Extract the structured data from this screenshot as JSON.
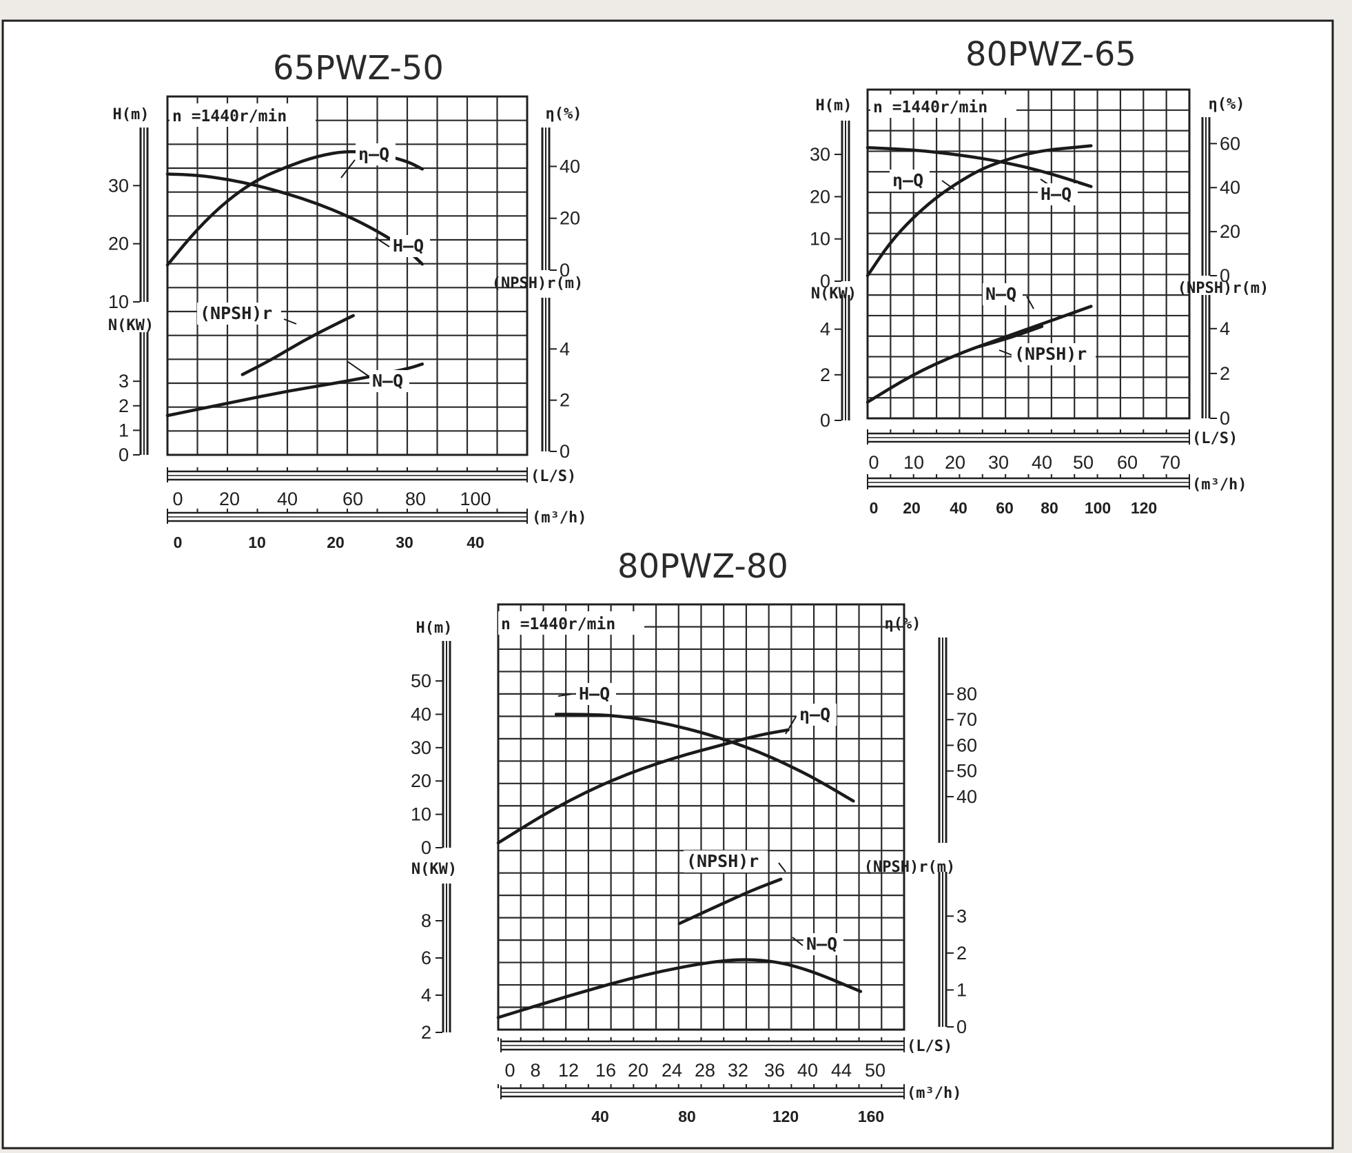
{
  "chart_data": [
    {
      "type": "line",
      "title": "65PWZ-50",
      "note": "n =1440r/min",
      "xlabel_top": "(L/S)",
      "xlabel_bottom": "(m³/h)",
      "x_ticks_top": [
        "0",
        "20",
        "40",
        "60",
        "80",
        "100"
      ],
      "x_ticks_bottom": [
        "0",
        "10",
        "20",
        "30",
        "40"
      ],
      "ylabel_left_top": "H(m)",
      "ylabel_left_bottom": "N(KW)",
      "ylabel_right_top": "η(%)",
      "ylabel_right_bottom": "(NPSH)r(m)",
      "y_ticks_h": [
        "10",
        "20",
        "30"
      ],
      "y_ticks_n": [
        "0",
        "1",
        "2",
        "3"
      ],
      "y_ticks_eta": [
        "0",
        "20",
        "40"
      ],
      "y_ticks_npsh": [
        "0",
        "2",
        "4"
      ],
      "xlim": [
        0,
        120
      ],
      "ylim_h": [
        10,
        40
      ],
      "ylim_n": [
        0,
        5
      ],
      "ylim_eta": [
        0,
        55
      ],
      "ylim_npsh": [
        0,
        6
      ],
      "series": [
        {
          "name": "η—Q",
          "axis": "eta",
          "x": [
            0,
            10,
            20,
            30,
            40,
            50,
            60,
            70,
            80,
            85
          ],
          "y": [
            2,
            16,
            27,
            35,
            40,
            44,
            46,
            45,
            42,
            39
          ]
        },
        {
          "name": "H—Q",
          "axis": "h",
          "x": [
            0,
            10,
            20,
            30,
            40,
            50,
            60,
            70,
            80,
            85
          ],
          "y": [
            32,
            31.8,
            31.1,
            30,
            28.6,
            26.9,
            24.8,
            22.2,
            19,
            16.5
          ]
        },
        {
          "name": "(NPSH)r",
          "axis": "npsh",
          "x": [
            25,
            35,
            45,
            55,
            62
          ],
          "y": [
            3.0,
            3.6,
            4.3,
            4.9,
            5.3
          ]
        },
        {
          "name": "N—Q",
          "axis": "n",
          "x": [
            0,
            20,
            40,
            60,
            80,
            85
          ],
          "y": [
            1.6,
            2.1,
            2.6,
            3.0,
            3.5,
            3.7
          ]
        }
      ]
    },
    {
      "type": "line",
      "title": "80PWZ-65",
      "note": "n =1440r/min",
      "xlabel_top": "(L/S)",
      "xlabel_bottom": "(m³/h)",
      "x_ticks_top": [
        "0",
        "10",
        "20",
        "30",
        "40",
        "50",
        "60",
        "70"
      ],
      "x_ticks_bottom": [
        "0",
        "20",
        "40",
        "60",
        "80",
        "100",
        "120"
      ],
      "ylabel_left_top": "H(m)",
      "ylabel_left_bottom": "N(KW)",
      "ylabel_right_top": "η(%)",
      "ylabel_right_bottom": "(NPSH)r(m)",
      "y_ticks_h": [
        "0",
        "10",
        "20",
        "30"
      ],
      "y_ticks_n": [
        "0",
        "2",
        "4"
      ],
      "y_ticks_eta": [
        "0",
        "20",
        "40",
        "60"
      ],
      "y_ticks_npsh": [
        "0",
        "2",
        "4"
      ],
      "xlim": [
        0,
        72
      ],
      "ylim_h": [
        0,
        38
      ],
      "ylim_n": [
        0,
        5.5
      ],
      "ylim_eta": [
        0,
        72
      ],
      "ylim_npsh": [
        0,
        5.5
      ],
      "series": [
        {
          "name": "η—Q",
          "axis": "eta",
          "x": [
            0,
            5,
            10,
            15,
            20,
            25,
            30,
            35,
            40,
            45,
            50
          ],
          "y": [
            0,
            15,
            26,
            35,
            42,
            48,
            52,
            55,
            57,
            58,
            59
          ]
        },
        {
          "name": "H—Q",
          "axis": "h",
          "x": [
            0,
            10,
            20,
            30,
            40,
            50
          ],
          "y": [
            31.6,
            31.1,
            30,
            28.3,
            25.8,
            22.4
          ]
        },
        {
          "name": "N—Q",
          "axis": "n",
          "x": [
            0,
            10,
            20,
            30,
            40,
            50
          ],
          "y": [
            0.8,
            2.0,
            2.9,
            3.6,
            4.3,
            5.0
          ]
        },
        {
          "name": "(NPSH)r",
          "axis": "npsh",
          "x": [
            25,
            32,
            39
          ],
          "y": [
            3.2,
            3.6,
            4.1
          ]
        }
      ]
    },
    {
      "type": "line",
      "title": "80PWZ-80",
      "note": "n =1440r/min",
      "xlabel_top": "(L/S)",
      "xlabel_bottom": "(m³/h)",
      "x_ticks_top": [
        "0",
        "8",
        "12",
        "16",
        "20",
        "24",
        "28",
        "32",
        "36",
        "40",
        "44",
        "50"
      ],
      "x_ticks_bottom": [
        "40",
        "80",
        "120",
        "160"
      ],
      "ylabel_left_top": "H(m)",
      "ylabel_left_bottom": "N(KW)",
      "ylabel_right_top": "η(%)",
      "ylabel_right_bottom": "(NPSH)r(m)",
      "y_ticks_h": [
        "0",
        "10",
        "20",
        "30",
        "40",
        "50"
      ],
      "y_ticks_n": [
        "2",
        "4",
        "6",
        "8"
      ],
      "y_ticks_eta": [
        "40",
        "50",
        "60",
        "70",
        "80"
      ],
      "y_ticks_npsh": [
        "0",
        "1",
        "2",
        "3"
      ],
      "xlim": [
        0,
        56
      ],
      "ylim_h": [
        0,
        62
      ],
      "ylim_n": [
        2,
        10
      ],
      "ylim_eta": [
        22,
        102
      ],
      "ylim_npsh": [
        0,
        4.2
      ],
      "series": [
        {
          "name": "H—Q",
          "axis": "h",
          "x": [
            8,
            12,
            16,
            20,
            24,
            28,
            32,
            36,
            40,
            44,
            49
          ],
          "y": [
            40,
            40,
            39.6,
            38.5,
            36.8,
            34.6,
            31.9,
            28.7,
            24.8,
            20.4,
            14
          ]
        },
        {
          "name": "η—Q",
          "axis": "eta",
          "x": [
            0,
            8,
            16,
            24,
            32,
            36,
            40
          ],
          "y": [
            22,
            36,
            47,
            55,
            61,
            64,
            66
          ]
        },
        {
          "name": "(NPSH)r",
          "axis": "npsh",
          "x": [
            25,
            30,
            35,
            39
          ],
          "y": [
            2.8,
            3.25,
            3.7,
            4.0
          ]
        },
        {
          "name": "N—Q",
          "axis": "n",
          "x": [
            0,
            10,
            20,
            30,
            36,
            42,
            50
          ],
          "y": [
            2.8,
            4.0,
            5.1,
            5.85,
            5.95,
            5.5,
            4.2
          ]
        }
      ]
    }
  ]
}
